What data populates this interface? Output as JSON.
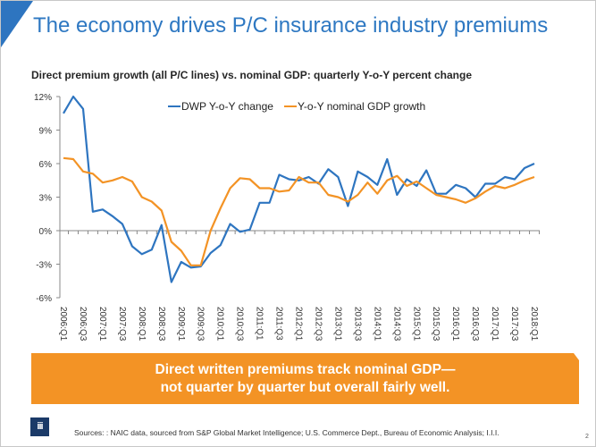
{
  "slide": {
    "title": "The economy drives P/C insurance industry premiums",
    "subtitle": "Direct premium growth (all P/C lines) vs. nominal GDP: quarterly Y-o-Y percent change",
    "banner_line1": "Direct written premiums track nominal GDP—",
    "banner_line2": "not quarter by quarter but overall fairly well.",
    "logo_text": "iii",
    "sources": "Sources: : NAIC data, sourced from S&P Global Market Intelligence; U.S. Commerce Dept., Bureau of Economic Analysis; I.I.I.",
    "page_number": "2",
    "colors": {
      "title": "#2e78c2",
      "accent_blue": "#2e75c0",
      "banner": "#f39325",
      "logo": "#1b3a68"
    }
  },
  "chart_data": {
    "type": "line",
    "title": "Direct premium growth (all P/C lines) vs. nominal GDP: quarterly Y-o-Y percent change",
    "xlabel": "",
    "ylabel": "",
    "ylim": [
      -6,
      12
    ],
    "yticks": [
      -6,
      -3,
      0,
      3,
      6,
      9,
      12
    ],
    "ytick_labels": [
      "-6%",
      "-3%",
      "0%",
      "3%",
      "6%",
      "9%",
      "12%"
    ],
    "grid": false,
    "legend_position": "top",
    "x": [
      "2006:Q1",
      "2006:Q2",
      "2006:Q3",
      "2006:Q4",
      "2007:Q1",
      "2007:Q2",
      "2007:Q3",
      "2007:Q4",
      "2008:Q1",
      "2008:Q2",
      "2008:Q3",
      "2008:Q4",
      "2009:Q1",
      "2009:Q2",
      "2009:Q3",
      "2009:Q4",
      "2010:Q1",
      "2010:Q2",
      "2010:Q3",
      "2010:Q4",
      "2011:Q1",
      "2011:Q2",
      "2011:Q3",
      "2011:Q4",
      "2012:Q1",
      "2012:Q2",
      "2012:Q3",
      "2012:Q4",
      "2013:Q1",
      "2013:Q2",
      "2013:Q3",
      "2013:Q4",
      "2014:Q1",
      "2014:Q2",
      "2014:Q3",
      "2014:Q4",
      "2015:Q1",
      "2015:Q2",
      "2015:Q3",
      "2015:Q4",
      "2016:Q1",
      "2016:Q2",
      "2016:Q3",
      "2016:Q4",
      "2017:Q1",
      "2017:Q2",
      "2017:Q3",
      "2017:Q4",
      "2018:Q1"
    ],
    "xtick_labels": [
      "2006:Q1",
      "2006:Q3",
      "2007:Q1",
      "2007:Q3",
      "2008:Q1",
      "2008:Q3",
      "2009:Q1",
      "2009:Q3",
      "2010:Q1",
      "2010:Q3",
      "2011:Q1",
      "2011:Q3",
      "2012:Q1",
      "2012:Q3",
      "2013:Q1",
      "2013:Q3",
      "2014:Q1",
      "2014:Q3",
      "2015:Q1",
      "2015:Q3",
      "2016:Q1",
      "2016:Q3",
      "2017:Q1",
      "2017:Q3",
      "2018:Q1"
    ],
    "series": [
      {
        "name": "DWP Y-o-Y change",
        "color": "#2e75c0",
        "values": [
          10.5,
          12.0,
          10.9,
          1.7,
          1.9,
          1.3,
          0.6,
          -1.4,
          -2.1,
          -1.7,
          0.5,
          -4.6,
          -2.8,
          -3.3,
          -3.2,
          -2.0,
          -1.3,
          0.6,
          -0.1,
          0.1,
          2.5,
          2.5,
          5.0,
          4.6,
          4.5,
          4.8,
          4.2,
          5.5,
          4.8,
          2.2,
          5.3,
          4.8,
          4.1,
          6.4,
          3.2,
          4.6,
          4.0,
          5.4,
          3.3,
          3.3,
          4.1,
          3.8,
          3.0,
          4.2,
          4.2,
          4.8,
          4.6,
          5.6,
          6.0
        ]
      },
      {
        "name": "Y-o-Y nominal GDP growth",
        "color": "#f39325",
        "values": [
          6.5,
          6.4,
          5.3,
          5.1,
          4.3,
          4.5,
          4.8,
          4.4,
          3.0,
          2.6,
          1.8,
          -1.0,
          -1.8,
          -3.1,
          -3.1,
          0.0,
          2.0,
          3.8,
          4.7,
          4.6,
          3.8,
          3.8,
          3.5,
          3.6,
          4.8,
          4.3,
          4.3,
          3.2,
          3.0,
          2.6,
          3.2,
          4.3,
          3.3,
          4.5,
          4.9,
          4.0,
          4.4,
          3.8,
          3.2,
          3.0,
          2.8,
          2.5,
          2.9,
          3.5,
          4.0,
          3.8,
          4.1,
          4.5,
          4.8
        ]
      }
    ]
  }
}
